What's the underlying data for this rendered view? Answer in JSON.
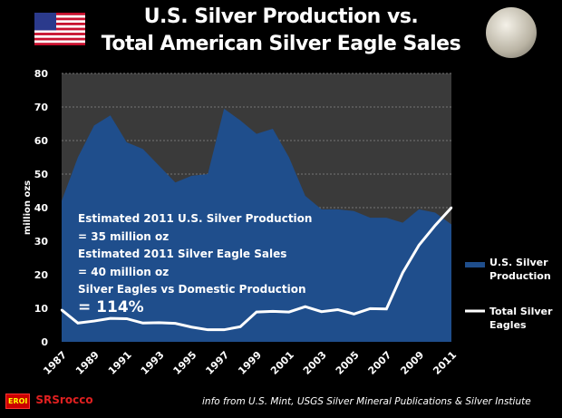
{
  "chart_data": {
    "type": "area",
    "title": "U.S. Silver Production vs. Total American Silver Eagle Sales",
    "title_lines": [
      "U.S. Silver Production vs.",
      "Total American Silver Eagle Sales"
    ],
    "ylabel": "million ozs",
    "ylim": [
      0,
      80
    ],
    "yticks": [
      "0",
      "10",
      "20",
      "30",
      "40",
      "50",
      "60",
      "70",
      "80"
    ],
    "xtick_labels": [
      "1987",
      "1989",
      "1991",
      "1993",
      "1995",
      "1997",
      "1999",
      "2001",
      "2003",
      "2005",
      "2007",
      "2009",
      "2011"
    ],
    "x": [
      1987,
      1988,
      1989,
      1990,
      1991,
      1992,
      1993,
      1994,
      1995,
      1996,
      1997,
      1998,
      1999,
      2000,
      2001,
      2002,
      2003,
      2004,
      2005,
      2006,
      2007,
      2008,
      2009,
      2010,
      2011
    ],
    "grid": true,
    "legend_position": "right",
    "series": [
      {
        "name": "U.S. Silver Production",
        "type": "area",
        "color": "#1f4e8c",
        "values": [
          42,
          55,
          64.5,
          67.5,
          59.5,
          57.5,
          52.5,
          47.5,
          49.5,
          50,
          69.5,
          66,
          62,
          63.5,
          55,
          43.5,
          39.5,
          39.5,
          39,
          37,
          37,
          35.5,
          39.5,
          38.5,
          35
        ]
      },
      {
        "name": "Total Silver Eagles",
        "type": "line",
        "color": "#ffffff",
        "values": [
          9.5,
          5.6,
          6.2,
          7,
          6.9,
          5.6,
          5.7,
          5.5,
          4.4,
          3.6,
          3.6,
          4.5,
          8.9,
          9.1,
          8.9,
          10.5,
          9,
          9.6,
          8.3,
          9.9,
          9.8,
          20.6,
          28.8,
          34.7,
          40
        ]
      }
    ],
    "legend": [
      {
        "lines": [
          "U.S. Silver",
          "Production"
        ]
      },
      {
        "lines": [
          "Total Silver",
          "Eagles"
        ]
      }
    ],
    "annotation": [
      "Estimated 2011 U.S. Silver Production",
      "= 35 million oz",
      "Estimated 2011 Silver Eagle Sales",
      "= 40 million oz",
      "Silver Eagles vs Domestic Production",
      "= 114%"
    ]
  },
  "footer": {
    "source": "info from U.S. Mint, USGS Silver Mineral Publications & Silver Instiute",
    "logo_badge": "EROI",
    "logo_text": "SRSrocco"
  }
}
